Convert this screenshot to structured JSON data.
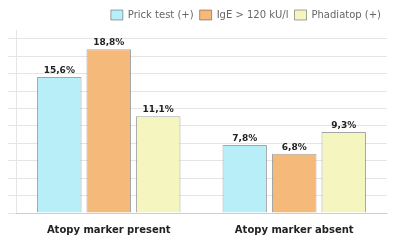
{
  "chart_data": {
    "type": "bar",
    "categories": [
      "Atopy marker present",
      "Atopy marker absent"
    ],
    "series": [
      {
        "name": "Prick test (+)",
        "color": "#b8eef8",
        "values": [
          15.6,
          7.8
        ],
        "value_labels": [
          "15,6%",
          "7,8%"
        ]
      },
      {
        "name": "IgE > 120 kU/l",
        "color": "#f5b97a",
        "values": [
          18.8,
          6.8
        ],
        "value_labels": [
          "18,8%",
          "6,8%"
        ]
      },
      {
        "name": "Phadiatop (+)",
        "color": "#f5f5c0",
        "values": [
          11.1,
          9.3
        ],
        "value_labels": [
          "11,1%",
          "9,3%"
        ]
      }
    ],
    "ylim": [
      0,
      21
    ],
    "yticks": [
      0,
      2,
      4,
      6,
      8,
      10,
      12,
      14,
      16,
      18,
      20
    ],
    "grid": true,
    "legend": "upper right",
    "data_labels": true,
    "tick_labels": "x"
  }
}
